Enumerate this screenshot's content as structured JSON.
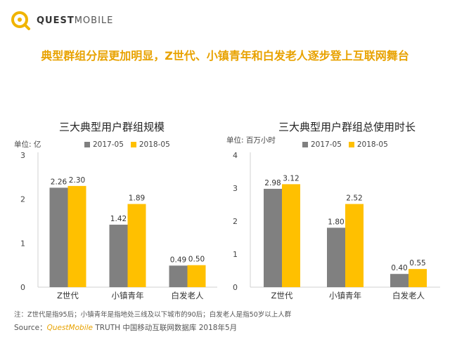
{
  "logo": {
    "brand_bold": "QUEST",
    "brand_rest": "MOBILE"
  },
  "headline": "典型群组分层更加明显，Z世代、小镇青年和白发老人逐步登上互联网舞台",
  "colors": {
    "series_2017": "#808080",
    "series_2018": "#FFC000",
    "accent": "#E8A200"
  },
  "chart_data": [
    {
      "type": "bar",
      "title": "三大典型用户群组规模",
      "unit": "单位: 亿",
      "categories": [
        "Z世代",
        "小镇青年",
        "白发老人"
      ],
      "series": [
        {
          "name": "2017-05",
          "values": [
            2.26,
            1.42,
            0.49
          ],
          "labels": [
            "2.26",
            "1.42",
            "0.49"
          ]
        },
        {
          "name": "2018-05",
          "values": [
            2.3,
            1.89,
            0.5
          ],
          "labels": [
            "2.30",
            "1.89",
            "0.50"
          ]
        }
      ],
      "ylim": [
        0,
        3
      ],
      "yticks": [
        "0",
        "1",
        "2",
        "3"
      ],
      "legend": "top",
      "grid": false
    },
    {
      "type": "bar",
      "title": "三大典型用户群组总使用时长",
      "unit": "单位: 百万小时",
      "categories": [
        "Z世代",
        "小镇青年",
        "白发老人"
      ],
      "series": [
        {
          "name": "2017-05",
          "values": [
            2.98,
            1.8,
            0.4
          ],
          "labels": [
            "2.98",
            "1.80",
            "0.40"
          ]
        },
        {
          "name": "2018-05",
          "values": [
            3.12,
            2.52,
            0.55
          ],
          "labels": [
            "3.12",
            "2.52",
            "0.55"
          ]
        }
      ],
      "ylim": [
        0,
        4
      ],
      "yticks": [
        "0",
        "1",
        "2",
        "3",
        "4"
      ],
      "legend": "top",
      "grid": false
    }
  ],
  "footer": {
    "note": "注：Z世代是指95后；小镇青年是指地处三线及以下城市的90后；白发老人是指50岁以上人群",
    "source_label": "Source：",
    "source_brand": "QuestMobile",
    "source_rest": " TRUTH 中国移动互联网数据库 2018年5月"
  }
}
